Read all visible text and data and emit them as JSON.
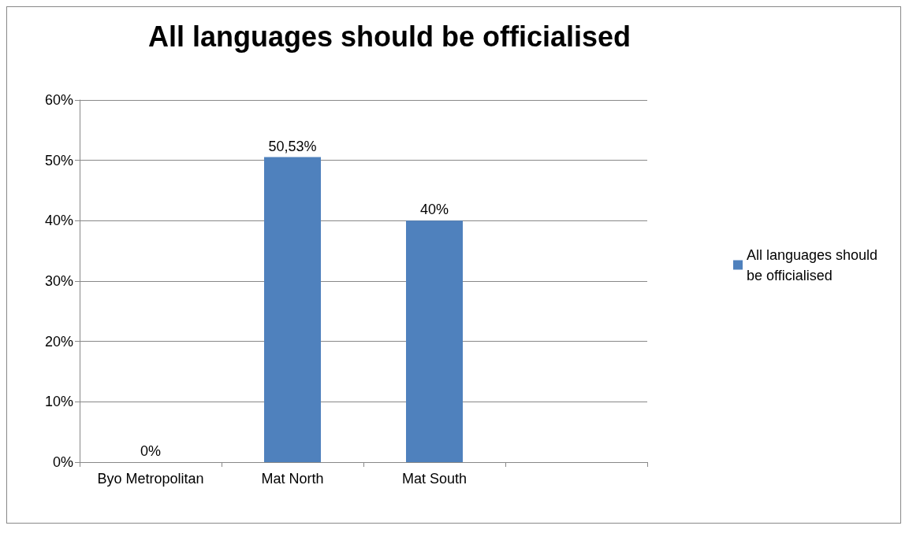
{
  "chart_data": {
    "type": "bar",
    "title": "All languages should be officialised",
    "categories": [
      "Byo Metropolitan",
      "Mat North",
      "Mat South",
      null
    ],
    "series": [
      {
        "name": "All languages should be officialised",
        "color": "#4f81bd",
        "values": [
          0,
          50.53,
          40,
          null
        ],
        "value_labels": [
          "0%",
          "50,53%",
          "40%",
          null
        ]
      }
    ],
    "ylim": [
      0,
      60
    ],
    "yticks": [
      {
        "value": 0,
        "label": "0%"
      },
      {
        "value": 10,
        "label": "10%"
      },
      {
        "value": 20,
        "label": "20%"
      },
      {
        "value": 30,
        "label": "30%"
      },
      {
        "value": 40,
        "label": "40%"
      },
      {
        "value": 50,
        "label": "50%"
      },
      {
        "value": 60,
        "label": "60%"
      }
    ],
    "grid": "y",
    "legend": "right"
  }
}
